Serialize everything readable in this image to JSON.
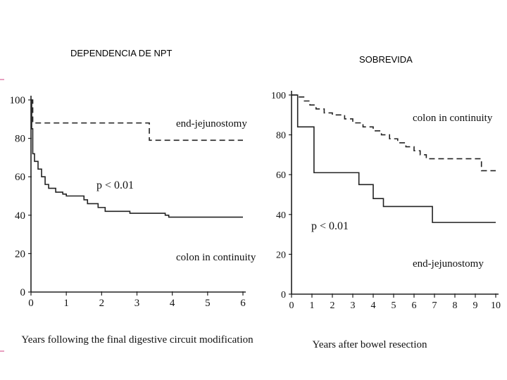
{
  "titles": {
    "left": "DEPENDENCIA DE NPT",
    "right": "SOBREVIDA"
  },
  "chart_data": [
    {
      "type": "line",
      "step": true,
      "xlabel": "Years following the final digestive circuit modification",
      "ylabel": "",
      "xlim": [
        0,
        6
      ],
      "ylim": [
        0,
        100
      ],
      "x_ticks": [
        0,
        1,
        2,
        3,
        4,
        5,
        6
      ],
      "y_ticks": [
        0,
        20,
        40,
        60,
        80,
        100
      ],
      "annotation": "p < 0.01",
      "series": [
        {
          "name": "end-jejunostomy",
          "style": "dashed",
          "points": [
            [
              0,
              100
            ],
            [
              0.05,
              88
            ],
            [
              3.35,
              88
            ],
            [
              3.35,
              79
            ],
            [
              6,
              79
            ]
          ]
        },
        {
          "name": "colon in continuity",
          "style": "solid",
          "points": [
            [
              0,
              100
            ],
            [
              0.02,
              85
            ],
            [
              0.05,
              72
            ],
            [
              0.1,
              68
            ],
            [
              0.2,
              64
            ],
            [
              0.3,
              60
            ],
            [
              0.4,
              56
            ],
            [
              0.5,
              54
            ],
            [
              0.7,
              52
            ],
            [
              0.9,
              51
            ],
            [
              1.0,
              50
            ],
            [
              1.5,
              48
            ],
            [
              1.6,
              46
            ],
            [
              1.9,
              44
            ],
            [
              2.1,
              42
            ],
            [
              2.8,
              41
            ],
            [
              3.8,
              40
            ],
            [
              3.9,
              39
            ],
            [
              6,
              39
            ]
          ]
        }
      ]
    },
    {
      "type": "line",
      "step": true,
      "xlabel": "Years after bowel resection",
      "ylabel": "",
      "xlim": [
        0,
        10
      ],
      "ylim": [
        0,
        100
      ],
      "x_ticks": [
        0,
        1,
        2,
        3,
        4,
        5,
        6,
        7,
        8,
        9,
        10
      ],
      "y_ticks": [
        0,
        20,
        40,
        60,
        80,
        100
      ],
      "annotation": "p < 0.01",
      "series": [
        {
          "name": "colon in continuity",
          "style": "dashed",
          "points": [
            [
              0,
              100
            ],
            [
              0.3,
              99
            ],
            [
              0.6,
              97
            ],
            [
              0.9,
              95
            ],
            [
              1.2,
              93
            ],
            [
              1.6,
              91
            ],
            [
              2.0,
              90
            ],
            [
              2.6,
              88
            ],
            [
              3.0,
              86
            ],
            [
              3.5,
              84
            ],
            [
              4.0,
              82
            ],
            [
              4.4,
              80
            ],
            [
              4.8,
              78
            ],
            [
              5.2,
              76
            ],
            [
              5.6,
              74
            ],
            [
              6.0,
              72
            ],
            [
              6.3,
              70
            ],
            [
              6.6,
              68
            ],
            [
              9.3,
              68
            ],
            [
              9.3,
              62
            ],
            [
              10,
              62
            ]
          ]
        },
        {
          "name": "end-jejunostomy",
          "style": "solid",
          "points": [
            [
              0,
              100
            ],
            [
              0.3,
              84
            ],
            [
              0.9,
              84
            ],
            [
              1.1,
              61
            ],
            [
              3.3,
              61
            ],
            [
              3.3,
              55
            ],
            [
              3.8,
              55
            ],
            [
              4.0,
              48
            ],
            [
              4.3,
              48
            ],
            [
              4.5,
              44
            ],
            [
              6.9,
              44
            ],
            [
              6.9,
              36
            ],
            [
              10,
              36
            ]
          ]
        }
      ]
    }
  ]
}
